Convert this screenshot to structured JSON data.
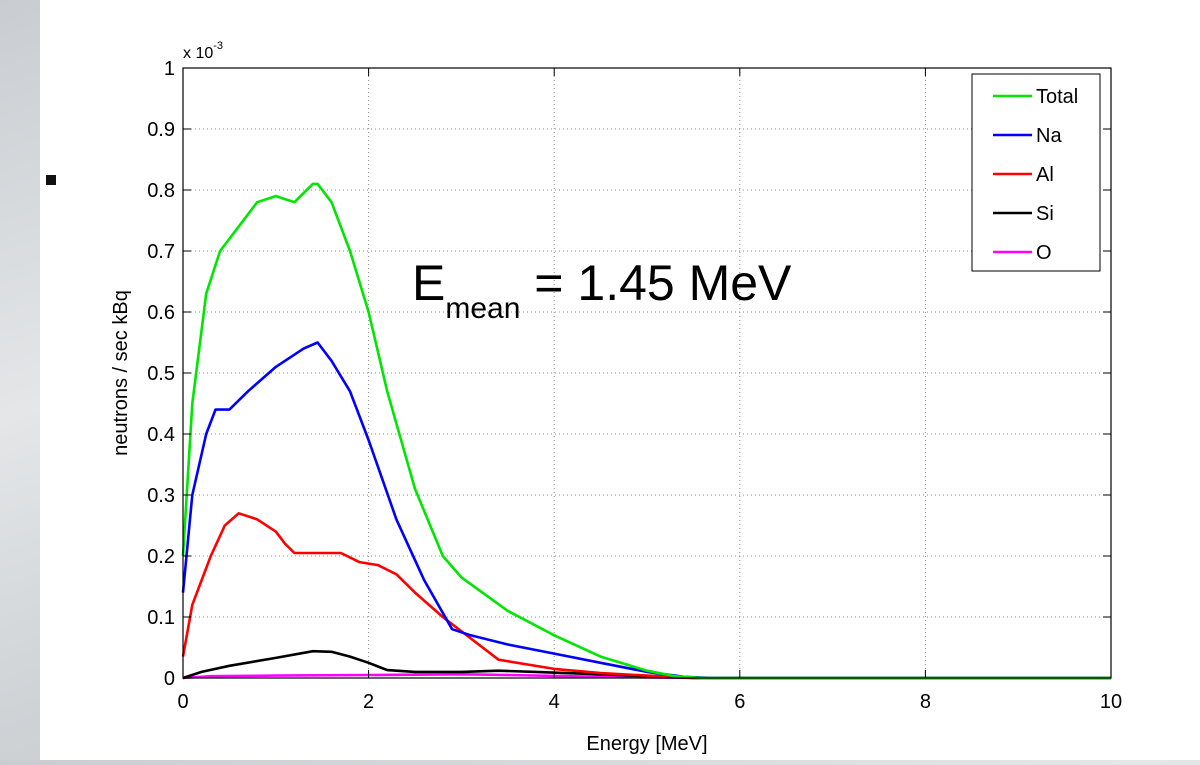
{
  "chart_data": {
    "type": "line",
    "xlabel": "Energy [MeV]",
    "ylabel": "neutrons / sec kBq",
    "y_multiplier": "x 10",
    "y_multiplier_exp": "-3",
    "xlim": [
      0,
      10
    ],
    "ylim": [
      0,
      1
    ],
    "xticks": [
      0,
      2,
      4,
      6,
      8,
      10
    ],
    "yticks": [
      0,
      0.1,
      0.2,
      0.3,
      0.4,
      0.5,
      0.6,
      0.7,
      0.8,
      0.9,
      1
    ],
    "grid": true,
    "legend_position": "top-right",
    "annotation": {
      "base": "E",
      "sub": "mean",
      "rest": " = 1.45 MeV"
    },
    "series": [
      {
        "name": "Total",
        "color": "#00e600",
        "points": [
          [
            0,
            0.2
          ],
          [
            0.1,
            0.45
          ],
          [
            0.25,
            0.63
          ],
          [
            0.4,
            0.7
          ],
          [
            0.6,
            0.74
          ],
          [
            0.8,
            0.78
          ],
          [
            1.0,
            0.79
          ],
          [
            1.2,
            0.78
          ],
          [
            1.4,
            0.81
          ],
          [
            1.45,
            0.81
          ],
          [
            1.6,
            0.78
          ],
          [
            1.8,
            0.7
          ],
          [
            2.0,
            0.6
          ],
          [
            2.2,
            0.47
          ],
          [
            2.5,
            0.31
          ],
          [
            2.8,
            0.2
          ],
          [
            3.0,
            0.165
          ],
          [
            3.5,
            0.11
          ],
          [
            4.0,
            0.07
          ],
          [
            4.5,
            0.035
          ],
          [
            5.0,
            0.012
          ],
          [
            5.3,
            0.003
          ],
          [
            5.6,
            0.0
          ],
          [
            10,
            0.0
          ]
        ]
      },
      {
        "name": "Na",
        "color": "#0000ff",
        "points": [
          [
            0,
            0.14
          ],
          [
            0.1,
            0.3
          ],
          [
            0.25,
            0.4
          ],
          [
            0.35,
            0.44
          ],
          [
            0.5,
            0.44
          ],
          [
            0.7,
            0.47
          ],
          [
            1.0,
            0.51
          ],
          [
            1.3,
            0.54
          ],
          [
            1.45,
            0.55
          ],
          [
            1.6,
            0.52
          ],
          [
            1.8,
            0.47
          ],
          [
            2.0,
            0.39
          ],
          [
            2.3,
            0.26
          ],
          [
            2.6,
            0.16
          ],
          [
            2.9,
            0.08
          ],
          [
            3.1,
            0.07
          ],
          [
            3.5,
            0.055
          ],
          [
            4.0,
            0.04
          ],
          [
            4.5,
            0.025
          ],
          [
            5.0,
            0.01
          ],
          [
            5.4,
            0.002
          ],
          [
            5.7,
            0.0
          ],
          [
            10,
            0.0
          ]
        ]
      },
      {
        "name": "Al",
        "color": "#ff0000",
        "points": [
          [
            0,
            0.035
          ],
          [
            0.1,
            0.12
          ],
          [
            0.3,
            0.2
          ],
          [
            0.45,
            0.25
          ],
          [
            0.6,
            0.27
          ],
          [
            0.8,
            0.26
          ],
          [
            1.0,
            0.24
          ],
          [
            1.1,
            0.22
          ],
          [
            1.2,
            0.205
          ],
          [
            1.4,
            0.205
          ],
          [
            1.7,
            0.205
          ],
          [
            1.9,
            0.19
          ],
          [
            2.1,
            0.185
          ],
          [
            2.3,
            0.17
          ],
          [
            2.5,
            0.14
          ],
          [
            2.8,
            0.1
          ],
          [
            3.1,
            0.065
          ],
          [
            3.4,
            0.03
          ],
          [
            4.0,
            0.015
          ],
          [
            4.5,
            0.008
          ],
          [
            5.0,
            0.004
          ],
          [
            5.4,
            0.001
          ],
          [
            5.7,
            0.0
          ],
          [
            10,
            0.0
          ]
        ]
      },
      {
        "name": "Si",
        "color": "#000000",
        "points": [
          [
            0,
            0.0
          ],
          [
            0.2,
            0.01
          ],
          [
            0.5,
            0.02
          ],
          [
            1.0,
            0.033
          ],
          [
            1.4,
            0.044
          ],
          [
            1.6,
            0.043
          ],
          [
            1.8,
            0.035
          ],
          [
            2.0,
            0.025
          ],
          [
            2.2,
            0.013
          ],
          [
            2.5,
            0.01
          ],
          [
            3.0,
            0.01
          ],
          [
            3.4,
            0.012
          ],
          [
            3.8,
            0.01
          ],
          [
            4.5,
            0.006
          ],
          [
            5.0,
            0.003
          ],
          [
            5.5,
            0.0
          ],
          [
            10,
            0.0
          ]
        ]
      },
      {
        "name": "O",
        "color": "#ff00ff",
        "points": [
          [
            0,
            0.0
          ],
          [
            0.3,
            0.003
          ],
          [
            1.0,
            0.004
          ],
          [
            2.0,
            0.005
          ],
          [
            3.0,
            0.006
          ],
          [
            3.5,
            0.005
          ],
          [
            4.5,
            0.002
          ],
          [
            5.5,
            0.0
          ],
          [
            10,
            0.0
          ]
        ]
      }
    ]
  }
}
